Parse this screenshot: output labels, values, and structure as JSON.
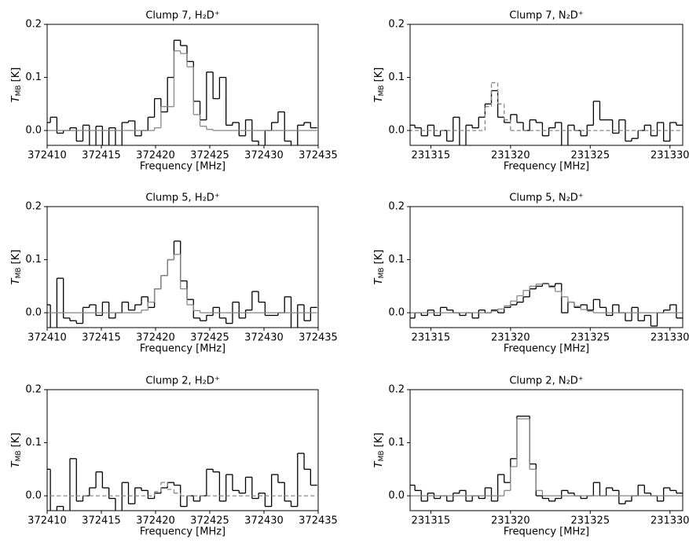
{
  "chart_data": [
    {
      "type": "line",
      "step": true,
      "title": "Clump 7, H₂D⁺",
      "xlabel": "Frequency [MHz]",
      "ylabel": {
        "symbol": "T",
        "subscript": "MB",
        "unit": "[K]"
      },
      "x": [
        372410.0,
        372410.6,
        372411.2,
        372411.8,
        372412.4,
        372413.0,
        372413.6,
        372414.2,
        372414.8,
        372415.4,
        372416.0,
        372416.6,
        372417.2,
        372417.8,
        372418.4,
        372419.0,
        372419.6,
        372420.2,
        372420.8,
        372421.4,
        372422.0,
        372422.6,
        372423.2,
        372423.8,
        372424.4,
        372425.0,
        372425.6,
        372426.2,
        372426.8,
        372427.4,
        372428.0,
        372428.6,
        372429.2,
        372429.8,
        372430.4,
        372431.0,
        372431.6,
        372432.2,
        372432.8,
        372433.4,
        372434.0,
        372434.6
      ],
      "series": [
        {
          "color": "#000000",
          "style": "solid",
          "values": [
            0.015,
            0.025,
            -0.005,
            0.0,
            0.005,
            -0.02,
            0.01,
            -0.04,
            0.008,
            -0.03,
            0.005,
            -0.05,
            0.015,
            0.018,
            -0.01,
            0.0,
            0.025,
            0.06,
            0.035,
            0.1,
            0.17,
            0.16,
            0.13,
            0.055,
            0.02,
            0.11,
            0.06,
            0.1,
            0.01,
            0.015,
            -0.01,
            0.02,
            -0.02,
            -0.04,
            0.0,
            0.015,
            0.035,
            -0.02,
            -0.03,
            0.01,
            0.015,
            0.005
          ]
        },
        {
          "color": "#888888",
          "style": "solid",
          "values": [
            0,
            0,
            0,
            0,
            0,
            0,
            0,
            0,
            0,
            0,
            0,
            0,
            0,
            0,
            0,
            0,
            0,
            0.005,
            0.045,
            0.045,
            0.15,
            0.145,
            0.12,
            0.03,
            0.008,
            0.002,
            0,
            0,
            0,
            0,
            0,
            0,
            0,
            0,
            0,
            0,
            0,
            0,
            0,
            0,
            0,
            0
          ]
        }
      ],
      "xlim": [
        372410,
        372435
      ],
      "xticks": [
        372410,
        372415,
        372420,
        372425,
        372430,
        372435
      ],
      "ylim": [
        -0.028,
        0.2
      ],
      "yticks": [
        {
          "value": 0,
          "label": "0.0"
        },
        0.1,
        0.2
      ]
    },
    {
      "type": "line",
      "step": true,
      "title": "Clump 7, N₂D⁺",
      "xlabel": "Frequency [MHz]",
      "ylabel": {
        "symbol": "T",
        "subscript": "MB",
        "unit": "[K]"
      },
      "x": [
        231313.8,
        231314.2,
        231314.6,
        231315.0,
        231315.4,
        231315.8,
        231316.2,
        231316.6,
        231317.0,
        231317.4,
        231317.8,
        231318.2,
        231318.6,
        231319.0,
        231319.4,
        231319.8,
        231320.2,
        231320.6,
        231321.0,
        231321.4,
        231321.8,
        231322.2,
        231322.6,
        231323.0,
        231323.4,
        231323.8,
        231324.2,
        231324.6,
        231325.0,
        231325.4,
        231325.8,
        231326.2,
        231326.6,
        231327.0,
        231327.4,
        231327.8,
        231328.2,
        231328.6,
        231329.0,
        231329.4,
        231329.8,
        231330.2,
        231330.6
      ],
      "series": [
        {
          "color": "#000000",
          "style": "solid",
          "values": [
            0.01,
            0.005,
            -0.01,
            0.01,
            -0.01,
            0.0,
            -0.02,
            0.025,
            -0.04,
            0.01,
            0.005,
            0.025,
            0.05,
            0.075,
            0.025,
            0.015,
            0.03,
            0.015,
            0.0,
            0.02,
            0.015,
            -0.01,
            0.005,
            0.015,
            -0.03,
            0.01,
            0.0,
            -0.01,
            0.01,
            0.055,
            0.02,
            0.02,
            -0.005,
            0.02,
            -0.02,
            -0.015,
            0.0,
            0.01,
            -0.01,
            0.015,
            -0.02,
            0.015,
            0.01
          ]
        },
        {
          "color": "#888888",
          "style": "dashed",
          "values": [
            0,
            0,
            0,
            0,
            0,
            0,
            0,
            0,
            0,
            0,
            0,
            0,
            0.045,
            0.09,
            0.05,
            0.02,
            0,
            0,
            0,
            0,
            0,
            0,
            0,
            0,
            0,
            0,
            0,
            0,
            0,
            0,
            0,
            0,
            0,
            0,
            0,
            0,
            0,
            0,
            0,
            0,
            0,
            0,
            0
          ]
        }
      ],
      "xlim": [
        231313.7,
        231330.8
      ],
      "xticks": [
        231315,
        231320,
        231325,
        231330
      ],
      "ylim": [
        -0.028,
        0.2
      ],
      "yticks": [
        {
          "value": 0,
          "label": "0.0"
        },
        0.1,
        0.2
      ]
    },
    {
      "type": "line",
      "step": true,
      "title": "Clump 5, H₂D⁺",
      "xlabel": "Frequency [MHz]",
      "ylabel": {
        "symbol": "T",
        "subscript": "MB",
        "unit": "[K]"
      },
      "x": [
        372410.0,
        372410.6,
        372411.2,
        372411.8,
        372412.4,
        372413.0,
        372413.6,
        372414.2,
        372414.8,
        372415.4,
        372416.0,
        372416.6,
        372417.2,
        372417.8,
        372418.4,
        372419.0,
        372419.6,
        372420.2,
        372420.8,
        372421.4,
        372422.0,
        372422.6,
        372423.2,
        372423.8,
        372424.4,
        372425.0,
        372425.6,
        372426.2,
        372426.8,
        372427.4,
        372428.0,
        372428.6,
        372429.2,
        372429.8,
        372430.4,
        372431.0,
        372431.6,
        372432.2,
        372432.8,
        372433.4,
        372434.0,
        372434.6
      ],
      "series": [
        {
          "color": "#000000",
          "style": "solid",
          "values": [
            0.015,
            -0.03,
            0.065,
            -0.01,
            -0.015,
            -0.02,
            0.01,
            0.015,
            -0.005,
            0.02,
            -0.01,
            0.0,
            0.02,
            0.005,
            0.015,
            0.03,
            0.01,
            0.045,
            0.07,
            0.1,
            0.135,
            0.06,
            0.025,
            -0.01,
            -0.015,
            -0.005,
            0.01,
            -0.01,
            -0.02,
            0.02,
            -0.01,
            0.005,
            0.04,
            0.02,
            -0.005,
            -0.005,
            0.0,
            0.03,
            -0.03,
            0.015,
            -0.015,
            0.01
          ]
        },
        {
          "color": "#888888",
          "style": "solid",
          "values": [
            0,
            0,
            0,
            0,
            0,
            0,
            0,
            0,
            0,
            0,
            0,
            0,
            0,
            0,
            0,
            0.005,
            0.02,
            0.045,
            0.07,
            0.1,
            0.11,
            0.045,
            0.015,
            0.004,
            0,
            0,
            0,
            0,
            0,
            0,
            0,
            0,
            0,
            0,
            0,
            0,
            0,
            0,
            0,
            0,
            0,
            0
          ]
        }
      ],
      "xlim": [
        372410,
        372435
      ],
      "xticks": [
        372410,
        372415,
        372420,
        372425,
        372430,
        372435
      ],
      "ylim": [
        -0.028,
        0.2
      ],
      "yticks": [
        {
          "value": 0,
          "label": "0.0"
        },
        0.1,
        0.2
      ]
    },
    {
      "type": "line",
      "step": true,
      "title": "Clump 5, N₂D⁺",
      "xlabel": "Frequency [MHz]",
      "ylabel": {
        "symbol": "T",
        "subscript": "MB",
        "unit": "[K]"
      },
      "x": [
        231313.8,
        231314.2,
        231314.6,
        231315.0,
        231315.4,
        231315.8,
        231316.2,
        231316.6,
        231317.0,
        231317.4,
        231317.8,
        231318.2,
        231318.6,
        231319.0,
        231319.4,
        231319.8,
        231320.2,
        231320.6,
        231321.0,
        231321.4,
        231321.8,
        231322.2,
        231322.6,
        231323.0,
        231323.4,
        231323.8,
        231324.2,
        231324.6,
        231325.0,
        231325.4,
        231325.8,
        231326.2,
        231326.6,
        231327.0,
        231327.4,
        231327.8,
        231328.2,
        231328.6,
        231329.0,
        231329.4,
        231329.8,
        231330.2,
        231330.6
      ],
      "series": [
        {
          "color": "#000000",
          "style": "solid",
          "values": [
            -0.01,
            0.0,
            -0.005,
            0.005,
            -0.005,
            0.01,
            0.005,
            0.0,
            -0.005,
            0.0,
            -0.01,
            0.005,
            0.0,
            0.005,
            0.0,
            0.01,
            0.015,
            0.02,
            0.03,
            0.045,
            0.05,
            0.055,
            0.05,
            0.055,
            0.0,
            0.02,
            0.01,
            0.015,
            0.005,
            0.025,
            0.01,
            -0.005,
            0.015,
            0.0,
            -0.015,
            0.01,
            -0.015,
            -0.005,
            -0.025,
            0.0,
            0.005,
            0.015,
            -0.01
          ]
        },
        {
          "color": "#888888",
          "style": "solid",
          "values": [
            0,
            0,
            0,
            0,
            0,
            0,
            0,
            0,
            0,
            0,
            0,
            0,
            0,
            0.003,
            0.007,
            0.013,
            0.022,
            0.032,
            0.042,
            0.05,
            0.054,
            0.054,
            0.048,
            0.04,
            0.03,
            0.02,
            0.012,
            0.006,
            0.003,
            0,
            0,
            0,
            0,
            0,
            0,
            0,
            0,
            0,
            0,
            0,
            0,
            0,
            0
          ]
        }
      ],
      "xlim": [
        231313.7,
        231330.8
      ],
      "xticks": [
        231315,
        231320,
        231325,
        231330
      ],
      "ylim": [
        -0.028,
        0.2
      ],
      "yticks": [
        {
          "value": 0,
          "label": "0.0"
        },
        0.1,
        0.2
      ]
    },
    {
      "type": "line",
      "step": true,
      "title": "Clump 2, H₂D⁺",
      "xlabel": "Frequency [MHz]",
      "ylabel": {
        "symbol": "T",
        "subscript": "MB",
        "unit": "[K]"
      },
      "x": [
        372410.0,
        372410.6,
        372411.2,
        372411.8,
        372412.4,
        372413.0,
        372413.6,
        372414.2,
        372414.8,
        372415.4,
        372416.0,
        372416.6,
        372417.2,
        372417.8,
        372418.4,
        372419.0,
        372419.6,
        372420.2,
        372420.8,
        372421.4,
        372422.0,
        372422.6,
        372423.2,
        372423.8,
        372424.4,
        372425.0,
        372425.6,
        372426.2,
        372426.8,
        372427.4,
        372428.0,
        372428.6,
        372429.2,
        372429.8,
        372430.4,
        372431.0,
        372431.6,
        372432.2,
        372432.8,
        372433.4,
        372434.0,
        372434.6
      ],
      "series": [
        {
          "color": "#000000",
          "style": "solid",
          "values": [
            0.05,
            -0.03,
            -0.02,
            -0.04,
            0.07,
            -0.01,
            0.0,
            0.015,
            0.045,
            0.015,
            -0.005,
            -0.03,
            0.025,
            -0.015,
            0.015,
            0.01,
            -0.005,
            0.005,
            0.015,
            0.025,
            0.02,
            -0.02,
            0.0,
            -0.01,
            0.0,
            0.05,
            0.045,
            -0.01,
            0.04,
            0.01,
            0.005,
            0.035,
            -0.005,
            0.005,
            -0.02,
            0.04,
            0.025,
            -0.01,
            -0.02,
            0.08,
            0.05,
            0.02
          ]
        },
        {
          "color": "#888888",
          "style": "dashed",
          "values": [
            0,
            0,
            0,
            0,
            0,
            0,
            0,
            0,
            0,
            0,
            0,
            0,
            0,
            0,
            0,
            0,
            0,
            0.008,
            0.025,
            0.012,
            0.005,
            0,
            0,
            0,
            0,
            0,
            0,
            0,
            0,
            0,
            0,
            0,
            0,
            0,
            0,
            0,
            0,
            0,
            0,
            0,
            0,
            0
          ]
        }
      ],
      "xlim": [
        372410,
        372435
      ],
      "xticks": [
        372410,
        372415,
        372420,
        372425,
        372430,
        372435
      ],
      "ylim": [
        -0.028,
        0.2
      ],
      "yticks": [
        {
          "value": 0,
          "label": "0.0"
        },
        0.1,
        0.2
      ]
    },
    {
      "type": "line",
      "step": true,
      "title": "Clump 2, N₂D⁺",
      "xlabel": "Frequency [MHz]",
      "ylabel": {
        "symbol": "T",
        "subscript": "MB",
        "unit": "[K]"
      },
      "x": [
        231313.8,
        231314.2,
        231314.6,
        231315.0,
        231315.4,
        231315.8,
        231316.2,
        231316.6,
        231317.0,
        231317.4,
        231317.8,
        231318.2,
        231318.6,
        231319.0,
        231319.4,
        231319.8,
        231320.2,
        231320.6,
        231321.0,
        231321.4,
        231321.8,
        231322.2,
        231322.6,
        231323.0,
        231323.4,
        231323.8,
        231324.2,
        231324.6,
        231325.0,
        231325.4,
        231325.8,
        231326.2,
        231326.6,
        231327.0,
        231327.4,
        231327.8,
        231328.2,
        231328.6,
        231329.0,
        231329.4,
        231329.8,
        231330.2,
        231330.6
      ],
      "series": [
        {
          "color": "#000000",
          "style": "solid",
          "values": [
            0.02,
            0.01,
            -0.01,
            0.005,
            -0.005,
            0.0,
            -0.01,
            0.005,
            0.01,
            -0.01,
            0.0,
            -0.005,
            0.015,
            -0.01,
            0.04,
            0.025,
            0.07,
            0.15,
            0.15,
            0.06,
            0.0,
            -0.005,
            -0.01,
            -0.005,
            0.01,
            0.005,
            0.0,
            -0.005,
            0.0,
            0.025,
            0.0,
            0.015,
            0.01,
            -0.015,
            -0.01,
            0.0,
            0.02,
            0.005,
            0.0,
            -0.01,
            0.015,
            0.01,
            0.005
          ]
        },
        {
          "color": "#888888",
          "style": "solid",
          "values": [
            0,
            0,
            0,
            0,
            0,
            0,
            0,
            0,
            0,
            0,
            0,
            0,
            0,
            0,
            0,
            0.01,
            0.055,
            0.145,
            0.145,
            0.05,
            0.01,
            0,
            0,
            0,
            0,
            0,
            0,
            0,
            0,
            0,
            0,
            0,
            0,
            0,
            0,
            0,
            0,
            0,
            0,
            0,
            0,
            0,
            0
          ]
        }
      ],
      "xlim": [
        231313.7,
        231330.8
      ],
      "xticks": [
        231315,
        231320,
        231325,
        231330
      ],
      "ylim": [
        -0.028,
        0.2
      ],
      "yticks": [
        {
          "value": 0,
          "label": "0.0"
        },
        0.1,
        0.2
      ]
    }
  ]
}
